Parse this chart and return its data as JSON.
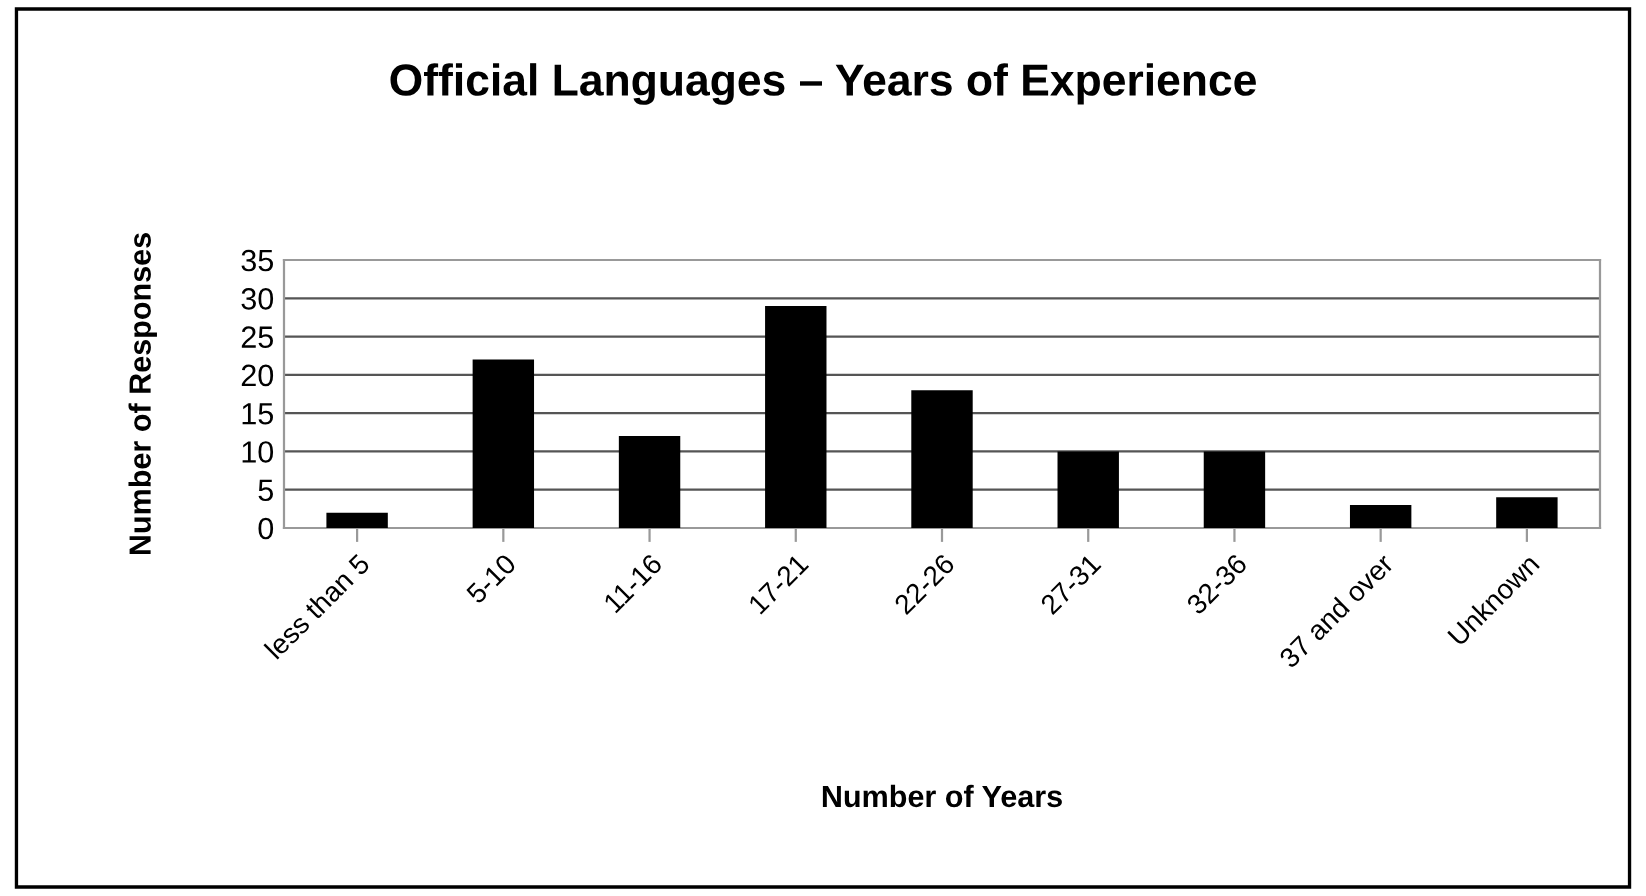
{
  "chart_data": {
    "type": "bar",
    "title": "Official Languages – Years of Experience",
    "xlabel": "Number of Years",
    "ylabel": "Number of Responses",
    "categories": [
      "less than 5",
      "5-10",
      "11-16",
      "17-21",
      "22-26",
      "27-31",
      "32-36",
      "37 and over",
      "Unknown"
    ],
    "values": [
      2,
      22,
      12,
      29,
      18,
      10,
      10,
      3,
      4
    ],
    "color": "#000000",
    "ylim": [
      0,
      35
    ],
    "yticks": [
      0,
      5,
      10,
      15,
      20,
      25,
      30,
      35
    ],
    "grid": "y"
  }
}
